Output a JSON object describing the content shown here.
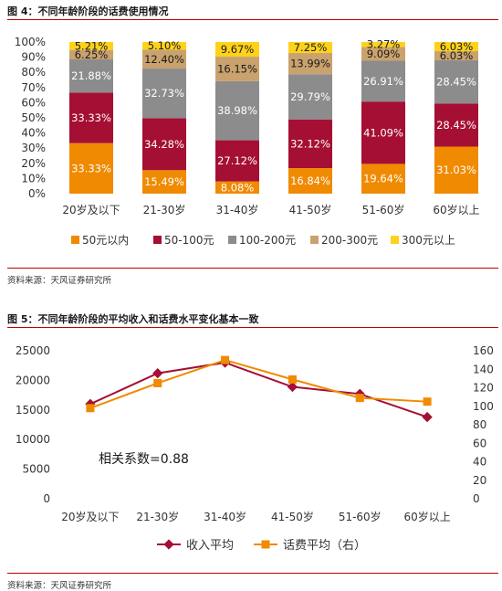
{
  "figure4": {
    "title": "图 4：不同年龄阶段的话费使用情况",
    "source": "资料来源：天风证券研究所"
  },
  "figure5": {
    "title": "图 5：不同年龄阶段的平均收入和话费水平变化基本一致",
    "source": "资料来源：天风证券研究所"
  },
  "chart_data": [
    {
      "type": "bar",
      "stacked": true,
      "percent": true,
      "title": "",
      "xlabel": "",
      "ylabel": "",
      "ylim": [
        0,
        100
      ],
      "categories": [
        "20岁及以下",
        "21-30岁",
        "31-40岁",
        "41-50岁",
        "51-60岁",
        "60岁以上"
      ],
      "y_ticks": [
        "0%",
        "10%",
        "20%",
        "30%",
        "40%",
        "50%",
        "60%",
        "70%",
        "80%",
        "90%",
        "100%"
      ],
      "series": [
        {
          "name": "50元以内",
          "color": "#f08a00",
          "values": [
            33.33,
            15.49,
            8.08,
            16.84,
            19.64,
            31.03
          ],
          "labels": [
            "33.33%",
            "15.49%",
            "8.08%",
            "16.84%",
            "19.64%",
            "31.03%"
          ]
        },
        {
          "name": "50-100元",
          "color": "#a50f33",
          "values": [
            33.33,
            34.28,
            27.12,
            32.12,
            41.09,
            28.45
          ],
          "labels": [
            "33.33%",
            "34.28%",
            "27.12%",
            "32.12%",
            "41.09%",
            "28.45%"
          ]
        },
        {
          "name": "100-200元",
          "color": "#8c8c8c",
          "values": [
            21.88,
            32.73,
            38.98,
            29.79,
            26.91,
            28.45
          ],
          "labels": [
            "21.88%",
            "32.73%",
            "38.98%",
            "29.79%",
            "26.91%",
            "28.45%"
          ]
        },
        {
          "name": "200-300元",
          "color": "#c9a26e",
          "values": [
            6.25,
            12.4,
            16.15,
            13.99,
            9.09,
            6.03
          ],
          "labels": [
            "6.25%",
            "12.40%",
            "16.15%",
            "13.99%",
            "9.09%",
            "6.03%"
          ]
        },
        {
          "name": "300元以上",
          "color": "#ffd21a",
          "values": [
            5.21,
            5.1,
            9.67,
            7.25,
            3.27,
            6.03
          ],
          "labels": [
            "5.21%",
            "5.10%",
            "9.67%",
            "7.25%",
            "3.27%",
            "6.03%"
          ]
        }
      ],
      "legend": "bottom",
      "grid": false
    },
    {
      "type": "line",
      "title": "",
      "xlabel": "",
      "ylabel": "",
      "categories": [
        "20岁及以下",
        "21-30岁",
        "31-40岁",
        "41-50岁",
        "51-60岁",
        "60岁以上"
      ],
      "ylim": [
        0,
        25000
      ],
      "y_ticks": [
        "0",
        "5000",
        "10000",
        "15000",
        "20000",
        "25000"
      ],
      "y2lim": [
        0,
        160
      ],
      "y2_ticks": [
        "0",
        "20",
        "40",
        "60",
        "80",
        "100",
        "120",
        "140",
        "160"
      ],
      "series": [
        {
          "name": "收入平均",
          "axis": "left",
          "color": "#a50f33",
          "marker": "diamond",
          "values": [
            16000,
            21200,
            23000,
            18900,
            17700,
            13800
          ]
        },
        {
          "name": "话费平均（右）",
          "axis": "right",
          "color": "#f08a00",
          "marker": "square",
          "values": [
            98,
            125,
            150,
            129,
            109,
            105
          ]
        }
      ],
      "annotation": "相关系数=0.88",
      "legend": "bottom",
      "grid": false
    }
  ]
}
